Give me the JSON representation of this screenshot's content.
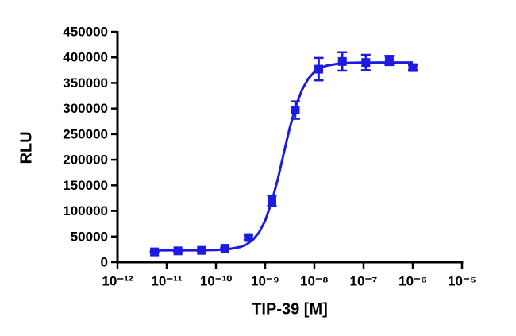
{
  "chart_data": {
    "type": "scatter",
    "x_label": "TIP-39 [M]",
    "y_label": "RLU",
    "xscale": "log",
    "xlim": [
      1e-12,
      1e-05
    ],
    "ylim": [
      0,
      450000
    ],
    "xticks": [
      {
        "value": 1e-12,
        "label": "10⁻¹²"
      },
      {
        "value": 1e-11,
        "label": "10⁻¹¹"
      },
      {
        "value": 1e-10,
        "label": "10⁻¹⁰"
      },
      {
        "value": 1e-09,
        "label": "10⁻⁹"
      },
      {
        "value": 1e-08,
        "label": "10⁻⁸"
      },
      {
        "value": 1e-07,
        "label": "10⁻⁷"
      },
      {
        "value": 1e-06,
        "label": "10⁻⁶"
      },
      {
        "value": 1e-05,
        "label": "10⁻⁵"
      }
    ],
    "yticks": [
      0,
      50000,
      100000,
      150000,
      200000,
      250000,
      300000,
      350000,
      400000,
      450000
    ],
    "series": [
      {
        "color": "#1c1ce0",
        "marker": "square",
        "x": [
          5.65e-12,
          1.69e-11,
          5.08e-11,
          1.52e-10,
          4.57e-10,
          1.37e-09,
          4.1e-09,
          1.23e-08,
          3.7e-08,
          1.11e-07,
          3.33e-07,
          1e-06
        ],
        "values": [
          20000,
          22000,
          23000,
          27000,
          48000,
          120000,
          297000,
          377000,
          392000,
          390000,
          394000,
          380000
        ],
        "errors": [
          1000,
          1000,
          1000,
          1500,
          4000,
          10000,
          17000,
          22000,
          18000,
          15000,
          9000,
          5000
        ]
      },
      {
        "color": "#1c1ce0",
        "line": true,
        "x": [
          5.62e-12,
          1e-11,
          1.78e-11,
          3.16e-11,
          5.62e-11,
          1e-10,
          1.78e-10,
          3.16e-10,
          4.22e-10,
          5.62e-10,
          7.5e-10,
          1e-09,
          1.33e-09,
          1.78e-09,
          2.37e-09,
          3.16e-09,
          4.22e-09,
          5.62e-09,
          7.5e-09,
          1e-08,
          1.33e-08,
          1.78e-08,
          3.16e-08,
          5.62e-08,
          1e-07,
          3.16e-07,
          1e-06
        ],
        "values": [
          23000,
          23000,
          23000,
          23100,
          23200,
          23700,
          25200,
          29700,
          34800,
          43500,
          57900,
          80800,
          114600,
          159400,
          211100,
          262100,
          305200,
          336900,
          358100,
          371400,
          379300,
          383900,
          388000,
          389400,
          389800,
          390000,
          390000
        ]
      }
    ]
  }
}
